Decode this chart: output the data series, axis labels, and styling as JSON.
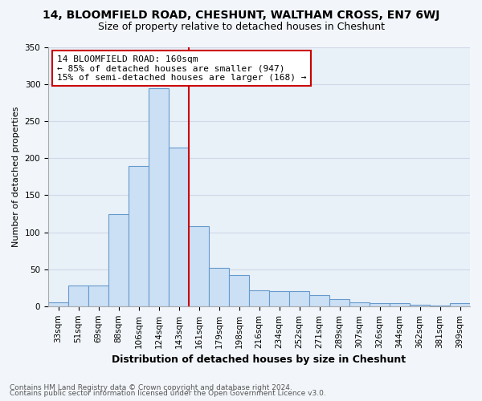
{
  "title": "14, BLOOMFIELD ROAD, CHESHUNT, WALTHAM CROSS, EN7 6WJ",
  "subtitle": "Size of property relative to detached houses in Cheshunt",
  "xlabel": "Distribution of detached houses by size in Cheshunt",
  "ylabel": "Number of detached properties",
  "footnote1": "Contains HM Land Registry data © Crown copyright and database right 2024.",
  "footnote2": "Contains public sector information licensed under the Open Government Licence v3.0.",
  "annotation_line1": "14 BLOOMFIELD ROAD: 160sqm",
  "annotation_line2": "← 85% of detached houses are smaller (947)",
  "annotation_line3": "15% of semi-detached houses are larger (168) →",
  "bar_labels": [
    "33sqm",
    "51sqm",
    "69sqm",
    "88sqm",
    "106sqm",
    "124sqm",
    "143sqm",
    "161sqm",
    "179sqm",
    "198sqm",
    "216sqm",
    "234sqm",
    "252sqm",
    "271sqm",
    "289sqm",
    "307sqm",
    "326sqm",
    "344sqm",
    "362sqm",
    "381sqm",
    "399sqm"
  ],
  "bar_heights": [
    5,
    28,
    28,
    125,
    190,
    295,
    215,
    108,
    52,
    42,
    22,
    20,
    20,
    15,
    10,
    5,
    4,
    4,
    2,
    1,
    4
  ],
  "bar_color": "#cce0f5",
  "bar_edge_color": "#6699cc",
  "vline_label_index": 7,
  "vline_color": "#cc0000",
  "annotation_box_color": "#cc0000",
  "background_color": "#f2f6fa",
  "plot_bg_color": "#e8f0f8",
  "grid_color": "#d0d8e8",
  "ylim": [
    0,
    350
  ],
  "yticks": [
    0,
    50,
    100,
    150,
    200,
    250,
    300,
    350
  ],
  "title_fontsize": 10,
  "subtitle_fontsize": 9,
  "annotation_fontsize": 8,
  "ylabel_fontsize": 8,
  "xlabel_fontsize": 9,
  "tick_fontsize": 7.5,
  "footnote_fontsize": 6.5
}
